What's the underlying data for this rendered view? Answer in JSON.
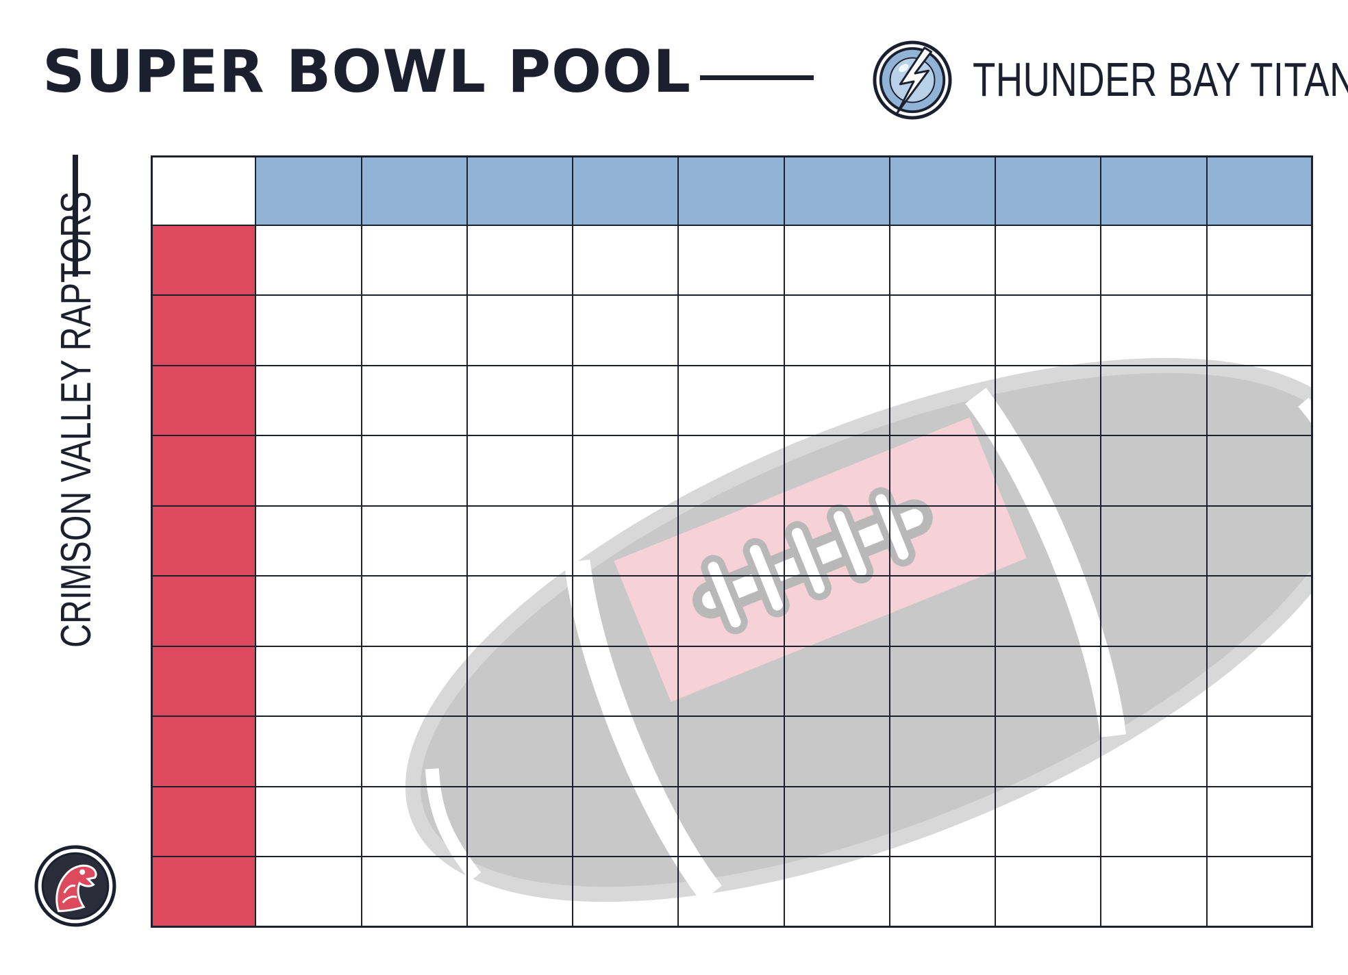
{
  "title": "SUPER BOWL POOL",
  "top_team": {
    "name": "THUNDER BAY TITANS",
    "logo_icon": "lightning-bolt-icon",
    "color": "#90b3d6"
  },
  "side_team": {
    "name": "CRIMSON VALLEY RAPTORS",
    "logo_icon": "raptor-head-icon",
    "color": "#dd4a5e"
  },
  "grid": {
    "columns": 10,
    "rows": 10
  },
  "watermark_icon": "football-icon",
  "colors": {
    "text": "#1c1f2e",
    "grid_line": "#1c1f2e",
    "watermark": "#c8c8c8",
    "watermark_panel": "#f6d2d8"
  }
}
